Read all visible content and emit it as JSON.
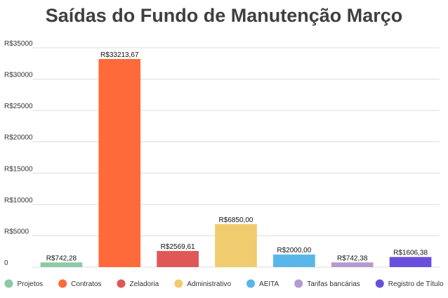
{
  "chart_data": {
    "type": "bar",
    "title": "Saídas do Fundo de Manutenção Março",
    "xlabel": "",
    "ylabel": "",
    "ylim": [
      0,
      35000
    ],
    "y_ticks": [
      0,
      5000,
      10000,
      15000,
      20000,
      25000,
      30000,
      35000
    ],
    "y_tick_labels": [
      "0",
      "R$5000",
      "R$10000",
      "R$15000",
      "R$20000",
      "R$25000",
      "R$30000",
      "R$35000"
    ],
    "grid": true,
    "legend_position": "bottom",
    "categories": [
      "Projetos",
      "Contratos",
      "Zeladoria",
      "Administrativo",
      "AEITA",
      "Tarifas bancárias",
      "Registro de Título"
    ],
    "values": [
      742.28,
      33213.67,
      2569.61,
      6850.0,
      2000.0,
      742.38,
      1606.38
    ],
    "data_labels": [
      "R$742,28",
      "R$33213,67",
      "R$2569,61",
      "R$6850,00",
      "R$2000,00",
      "R$742,38",
      "R$1606,38"
    ],
    "colors": [
      "#8cc9a5",
      "#ff6a3a",
      "#e05757",
      "#f0cc6e",
      "#58b6e8",
      "#b49ad0",
      "#6a4fdc"
    ]
  }
}
